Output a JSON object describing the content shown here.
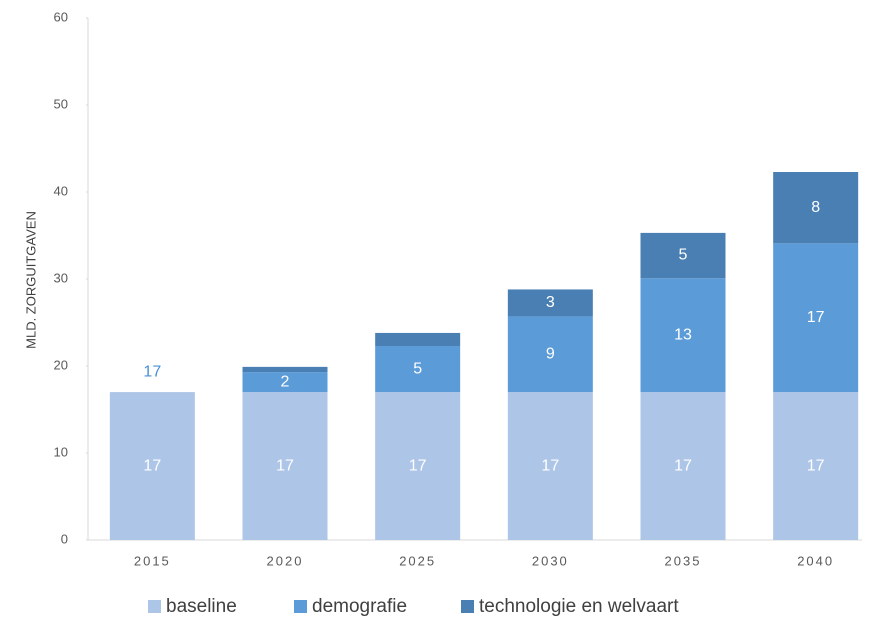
{
  "chart_data": {
    "type": "stacked_bar",
    "y_axis_label": "MLD. ZORGUITGAVEN",
    "categories": [
      "2015",
      "2020",
      "2025",
      "2030",
      "2035",
      "2040"
    ],
    "series": [
      {
        "name": "baseline",
        "color": "#adc5e7",
        "values": [
          17,
          17,
          17,
          17,
          17,
          17
        ]
      },
      {
        "name": "demografie",
        "color": "#5b9bd8",
        "values": [
          null,
          2.3,
          5.3,
          8.7,
          13.1,
          17.1
        ],
        "value_labels": [
          null,
          "2",
          "5",
          "9",
          "13",
          "17"
        ]
      },
      {
        "name": "technologie en welvaart",
        "color": "#4a7fb4",
        "values": [
          null,
          0.6,
          1.5,
          3.1,
          5.2,
          8.2
        ],
        "value_labels": [
          null,
          null,
          null,
          "3",
          "5",
          "8"
        ]
      }
    ],
    "annotations": [
      {
        "category": "2015",
        "value": 17
      }
    ],
    "ylim": [
      0,
      60
    ],
    "yticks": [
      0,
      10,
      20,
      30,
      40,
      50,
      60
    ],
    "grid": false,
    "legend": "bottom"
  }
}
